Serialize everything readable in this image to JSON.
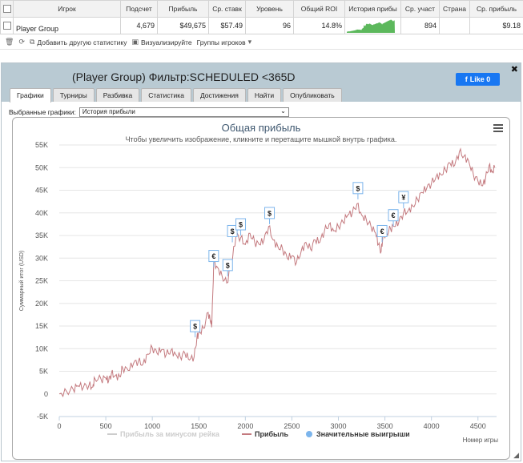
{
  "grid": {
    "headers": [
      "Игрок",
      "Подсчет",
      "Прибыль",
      "Ср. ставк",
      "Уровень",
      "Общий ROI",
      "История прибы",
      "Ср. участ",
      "Страна",
      "Ср. прибыль"
    ],
    "row": {
      "player": "Player Group",
      "count": "4,679",
      "profit": "$49,675",
      "avg_stake": "$57.49",
      "level": "96",
      "roi": "14.8%",
      "avg_entrants": "894",
      "country": "",
      "avg_profit": "$9.18"
    },
    "spark_color": "#5cb85c"
  },
  "toolbar": {
    "add_stats": "Добавить другую статистику",
    "visualize": "Визуализируйте",
    "groups": "Группы игроков"
  },
  "panel": {
    "title": "(Player Group) Фильтр:SCHEDULED <365D",
    "fb_like": "Like 0",
    "tabs": [
      "Графики",
      "Турниры",
      "Разбивка",
      "Статистика",
      "Достижения",
      "Найти",
      "Опубликовать"
    ],
    "active_tab": 0,
    "select_label": "Выбранные графики:",
    "select_value": "История прибыли"
  },
  "chart_data": {
    "type": "line",
    "title": "Общая прибыль",
    "subtitle": "Чтобы увеличить изображение, кликните и перетащите мышкой внутрь графика.",
    "ylabel": "Суммарный итог (USD)",
    "xlabel": "Номер игры",
    "xlim": [
      0,
      4700
    ],
    "ylim": [
      -5000,
      55000
    ],
    "x_ticks": [
      "0",
      "500",
      "1000",
      "1500",
      "2000",
      "2500",
      "3000",
      "3500",
      "4000",
      "4500"
    ],
    "y_ticks": [
      "-5K",
      "0",
      "5K",
      "10K",
      "15K",
      "20K",
      "25K",
      "30K",
      "35K",
      "40K",
      "45K",
      "50K",
      "55K"
    ],
    "legend_position": "bottom",
    "series": [
      {
        "name": "Прибыль за минусом рейка",
        "color": "#cccccc",
        "points": []
      },
      {
        "name": "Прибыль",
        "color": "#c47a7f",
        "points": [
          [
            0,
            0
          ],
          [
            80,
            500
          ],
          [
            150,
            1000
          ],
          [
            200,
            1800
          ],
          [
            260,
            1500
          ],
          [
            320,
            2000
          ],
          [
            360,
            1500
          ],
          [
            380,
            3500
          ],
          [
            450,
            3200
          ],
          [
            500,
            3500
          ],
          [
            530,
            2800
          ],
          [
            560,
            4500
          ],
          [
            600,
            4000
          ],
          [
            650,
            3800
          ],
          [
            680,
            5800
          ],
          [
            740,
            5200
          ],
          [
            800,
            6800
          ],
          [
            850,
            7200
          ],
          [
            900,
            6600
          ],
          [
            950,
            8800
          ],
          [
            1000,
            10200
          ],
          [
            1050,
            9000
          ],
          [
            1100,
            9800
          ],
          [
            1150,
            8700
          ],
          [
            1200,
            9600
          ],
          [
            1250,
            8800
          ],
          [
            1300,
            8200
          ],
          [
            1350,
            9000
          ],
          [
            1400,
            7500
          ],
          [
            1450,
            8200
          ],
          [
            1480,
            12500
          ],
          [
            1500,
            13500
          ],
          [
            1550,
            14500
          ],
          [
            1600,
            18000
          ],
          [
            1630,
            15500
          ],
          [
            1640,
            15500
          ],
          [
            1660,
            29000
          ],
          [
            1700,
            28000
          ],
          [
            1750,
            26000
          ],
          [
            1800,
            24500
          ],
          [
            1850,
            28500
          ],
          [
            1900,
            35000
          ],
          [
            1950,
            34500
          ],
          [
            2000,
            33000
          ],
          [
            2050,
            35500
          ],
          [
            2100,
            33500
          ],
          [
            2150,
            33000
          ],
          [
            2200,
            34000
          ],
          [
            2250,
            37000
          ],
          [
            2300,
            34000
          ],
          [
            2350,
            32500
          ],
          [
            2400,
            32000
          ],
          [
            2450,
            30000
          ],
          [
            2500,
            30500
          ],
          [
            2550,
            29000
          ],
          [
            2600,
            31500
          ],
          [
            2650,
            33500
          ],
          [
            2700,
            32000
          ],
          [
            2750,
            34000
          ],
          [
            2800,
            33500
          ],
          [
            2850,
            36000
          ],
          [
            2900,
            37500
          ],
          [
            2950,
            36000
          ],
          [
            3000,
            37000
          ],
          [
            3050,
            38000
          ],
          [
            3100,
            39500
          ],
          [
            3150,
            40000
          ],
          [
            3200,
            42000
          ],
          [
            3250,
            39500
          ],
          [
            3300,
            38500
          ],
          [
            3350,
            37000
          ],
          [
            3400,
            35500
          ],
          [
            3430,
            33000
          ],
          [
            3460,
            31500
          ],
          [
            3480,
            35000
          ],
          [
            3520,
            35500
          ],
          [
            3560,
            36500
          ],
          [
            3600,
            37000
          ],
          [
            3650,
            38000
          ],
          [
            3700,
            40000
          ],
          [
            3750,
            40500
          ],
          [
            3800,
            41500
          ],
          [
            3850,
            43000
          ],
          [
            3900,
            44500
          ],
          [
            3950,
            45500
          ],
          [
            4000,
            46500
          ],
          [
            4050,
            48000
          ],
          [
            4100,
            48500
          ],
          [
            4150,
            49500
          ],
          [
            4200,
            51000
          ],
          [
            4250,
            50500
          ],
          [
            4300,
            53500
          ],
          [
            4350,
            52500
          ],
          [
            4400,
            51500
          ],
          [
            4450,
            48500
          ],
          [
            4500,
            47000
          ],
          [
            4550,
            46000
          ],
          [
            4580,
            47500
          ],
          [
            4620,
            50500
          ],
          [
            4650,
            49000
          ],
          [
            4680,
            50000
          ]
        ]
      },
      {
        "name": "Значительные выигрыши",
        "color": "#7cb5ec",
        "markers": [
          {
            "x": 1460,
            "y": 12500,
            "symbol": "$"
          },
          {
            "x": 1660,
            "y": 28000,
            "symbol": "€"
          },
          {
            "x": 1810,
            "y": 26000,
            "symbol": "$"
          },
          {
            "x": 1860,
            "y": 33500,
            "symbol": "$"
          },
          {
            "x": 1950,
            "y": 35000,
            "symbol": "$"
          },
          {
            "x": 2260,
            "y": 37500,
            "symbol": "$"
          },
          {
            "x": 3210,
            "y": 43000,
            "symbol": "$"
          },
          {
            "x": 3470,
            "y": 33500,
            "symbol": "€"
          },
          {
            "x": 3590,
            "y": 37000,
            "symbol": "€"
          },
          {
            "x": 3700,
            "y": 41000,
            "symbol": "¥"
          }
        ]
      }
    ]
  }
}
